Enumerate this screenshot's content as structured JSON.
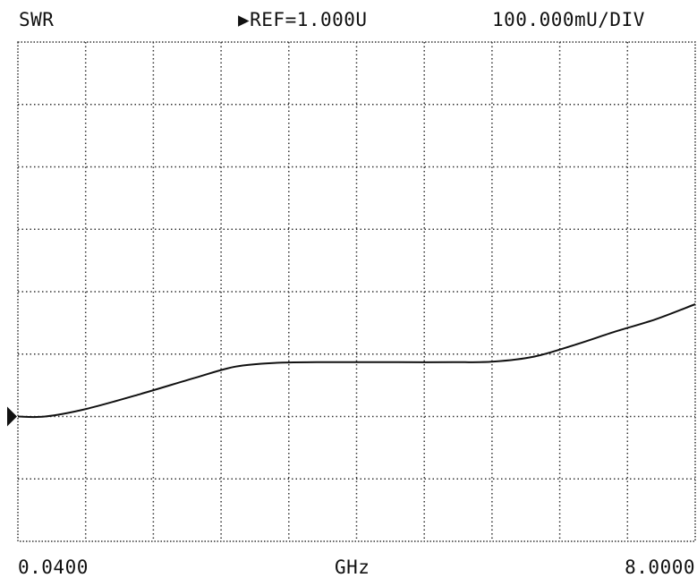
{
  "header": {
    "parameter": "SWR",
    "reference": "▶REF=1.000U",
    "scale": "100.000mU/DIV"
  },
  "footer": {
    "start": "0.0400",
    "unit": "GHz",
    "stop": "8.0000"
  },
  "colors": {
    "trace": "#111111",
    "grid": "#333333",
    "background": "#ffffff"
  },
  "chart_data": {
    "type": "line",
    "title": "",
    "xlabel": "GHz",
    "ylabel": "SWR",
    "x_start": 0.04,
    "x_stop": 8.0,
    "xlim": [
      0.04,
      8.0
    ],
    "ylim": [
      1.0,
      1.8
    ],
    "divisions_x": 10,
    "divisions_y": 8,
    "reference_value": 1.0,
    "reference_marker_value": 1.2,
    "grid": true,
    "series": [
      {
        "x": [
          0.04,
          0.36,
          0.84,
          1.48,
          2.12,
          2.6,
          3.08,
          3.55,
          4.03,
          4.51,
          5.15,
          5.63,
          6.11,
          6.59,
          7.06,
          7.54,
          8.0
        ],
        "values": [
          1.2,
          1.2,
          1.212,
          1.236,
          1.262,
          1.28,
          1.286,
          1.287,
          1.287,
          1.287,
          1.287,
          1.288,
          1.296,
          1.315,
          1.336,
          1.356,
          1.38
        ]
      }
    ]
  }
}
